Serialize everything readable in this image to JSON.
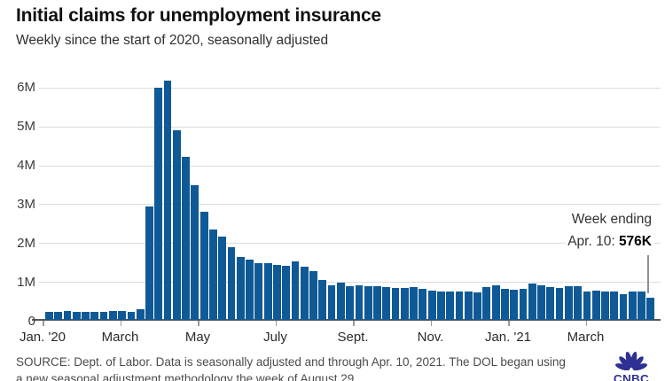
{
  "header": {
    "title": "Initial claims for unemployment insurance",
    "subtitle": "Weekly since the start of 2020, seasonally adjusted"
  },
  "chart_data": {
    "type": "bar",
    "title": "Initial claims for unemployment insurance",
    "subtitle": "Weekly since the start of 2020, seasonally adjusted",
    "unit": "millions of claims per week",
    "x_start_week": "Jan. 4, 2020",
    "x_end_week": "Apr. 10, 2021",
    "x_tick_labels": [
      "Jan. '20",
      "March",
      "May",
      "July",
      "Sept.",
      "Nov.",
      "Jan. '21",
      "March"
    ],
    "y_tick_labels": [
      "0",
      "1M",
      "2M",
      "3M",
      "4M",
      "5M",
      "6M"
    ],
    "ylim": [
      0,
      6.4
    ],
    "grid": "horizontal",
    "legend": "none",
    "values_millions": [
      0.21,
      0.21,
      0.22,
      0.21,
      0.2,
      0.2,
      0.21,
      0.22,
      0.22,
      0.21,
      0.28,
      2.92,
      5.98,
      6.16,
      4.88,
      4.2,
      3.46,
      2.78,
      2.33,
      2.15,
      1.87,
      1.62,
      1.54,
      1.47,
      1.45,
      1.42,
      1.4,
      1.5,
      1.38,
      1.26,
      1.03,
      0.9,
      0.95,
      0.87,
      0.88,
      0.86,
      0.87,
      0.85,
      0.83,
      0.81,
      0.84,
      0.79,
      0.76,
      0.73,
      0.72,
      0.74,
      0.72,
      0.71,
      0.85,
      0.88,
      0.8,
      0.78,
      0.8,
      0.93,
      0.89,
      0.84,
      0.83,
      0.86,
      0.86,
      0.73,
      0.76,
      0.73,
      0.73,
      0.66,
      0.72,
      0.74,
      0.576
    ],
    "annotation": {
      "line1": "Week ending",
      "line2_prefix": "Apr. 10: ",
      "value": "576K",
      "points_to": "last bar"
    }
  },
  "footer": {
    "source_line1": "SOURCE: Dept. of Labor. Data is seasonally adjusted and through Apr. 10, 2021. The DOL began using",
    "source_line2": "a new seasonal adjustment methodology the week of August 29.",
    "logo_text": "CNBC"
  },
  "colors": {
    "bar": "#0f5a96",
    "gridline": "#dcdcdc",
    "axis_line": "#565658",
    "title": "#111111",
    "axis_text": "#3d3d3d",
    "annotation_text": "#333333",
    "annotation_value": "#000000",
    "footer_text": "#4b4b4b",
    "logo": "#2e3192"
  }
}
